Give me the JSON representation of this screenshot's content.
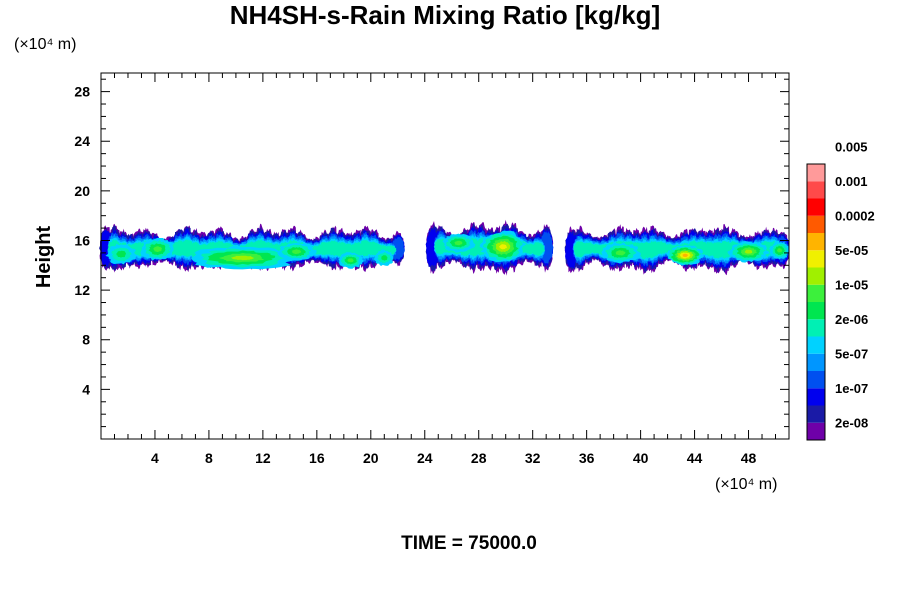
{
  "chart_data": {
    "type": "heatmap",
    "title": "NH4SH-s-Rain Mixing Ratio [kg/kg]",
    "ylabel": "Height",
    "y_unit": "(×10⁴ m)",
    "x_unit": "(×10⁴ m)",
    "xlim": [
      0,
      51
    ],
    "ylim": [
      0,
      29.5
    ],
    "x_ticks": [
      4,
      8,
      12,
      16,
      20,
      24,
      28,
      32,
      36,
      40,
      44,
      48
    ],
    "y_ticks": [
      4,
      8,
      12,
      16,
      20,
      24,
      28
    ],
    "footer": "TIME = 75000.0",
    "colorbar": {
      "colors": [
        "#6e00a8",
        "#1a1aa6",
        "#0000ee",
        "#0050f0",
        "#0096ff",
        "#00d2ff",
        "#00f0b4",
        "#00e650",
        "#3cf03c",
        "#a0f000",
        "#f0f000",
        "#ffb400",
        "#ff5a00",
        "#ff0000",
        "#ff4a4a",
        "#ff9a9a"
      ],
      "labels": [
        "2e-08",
        "1e-07",
        "5e-07",
        "2e-06",
        "1e-05",
        "5e-05",
        "0.0002",
        "0.001",
        "0.005"
      ]
    },
    "clouds": [
      {
        "x0": 0,
        "x1": 22.5,
        "y0": 13.4,
        "y1": 17.2,
        "peak": 9
      },
      {
        "x0": 24.2,
        "x1": 33.6,
        "y0": 13.2,
        "y1": 17.6,
        "peak": 10
      },
      {
        "x0": 34.5,
        "x1": 51,
        "y0": 13.3,
        "y1": 17.3,
        "peak": 11
      }
    ],
    "cores": [
      {
        "x": 1.5,
        "y": 14.9,
        "rx": 1.2,
        "ry": 0.9,
        "level": 7
      },
      {
        "x": 4.2,
        "y": 15.3,
        "rx": 1.4,
        "ry": 1.0,
        "level": 8
      },
      {
        "x": 10.5,
        "y": 14.6,
        "rx": 4.5,
        "ry": 1.0,
        "level": 9
      },
      {
        "x": 14.5,
        "y": 15.1,
        "rx": 1.5,
        "ry": 0.8,
        "level": 8
      },
      {
        "x": 18.5,
        "y": 14.4,
        "rx": 1.0,
        "ry": 0.7,
        "level": 8
      },
      {
        "x": 21.0,
        "y": 14.6,
        "rx": 0.8,
        "ry": 0.7,
        "level": 7
      },
      {
        "x": 29.8,
        "y": 15.5,
        "rx": 1.8,
        "ry": 1.4,
        "level": 10
      },
      {
        "x": 26.5,
        "y": 15.8,
        "rx": 1.3,
        "ry": 0.8,
        "level": 8
      },
      {
        "x": 38.5,
        "y": 15.0,
        "rx": 1.6,
        "ry": 0.9,
        "level": 8
      },
      {
        "x": 43.3,
        "y": 14.8,
        "rx": 1.5,
        "ry": 0.9,
        "level": 11
      },
      {
        "x": 48.0,
        "y": 15.1,
        "rx": 1.6,
        "ry": 0.9,
        "level": 9
      },
      {
        "x": 50.3,
        "y": 15.2,
        "rx": 0.8,
        "ry": 0.8,
        "level": 8
      }
    ]
  }
}
